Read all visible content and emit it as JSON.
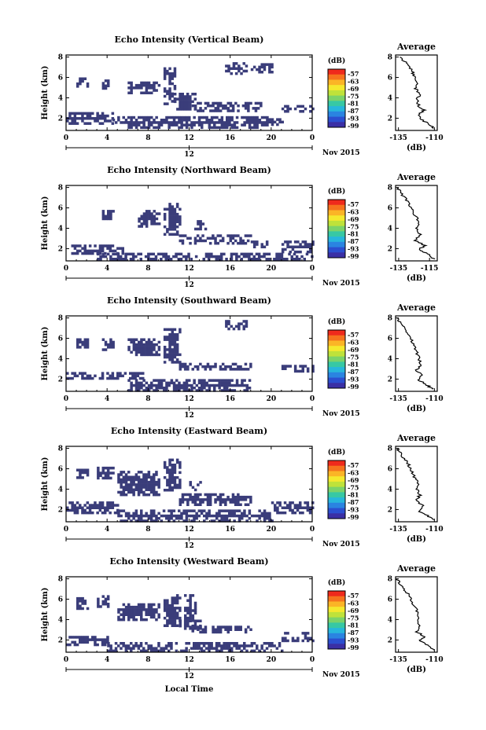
{
  "figure": {
    "xlabel": "Local Time",
    "date_label": "Nov 2015",
    "day_label": "12",
    "ylabel": "Height (km)",
    "colorbar_unit": "(dB)",
    "average_title": "Average",
    "average_xlabel": "(dB)"
  },
  "chart_data": [
    {
      "type": "heatmap",
      "title": "Echo Intensity (Vertical Beam)",
      "xticks": [
        "0",
        "4",
        "8",
        "12",
        "16",
        "20",
        "0"
      ],
      "yticks": [
        "2",
        "4",
        "6",
        "8"
      ],
      "xlim": [
        0,
        24
      ],
      "ylim": [
        0.8,
        8.2
      ],
      "colorbar_ticks": [
        "-57",
        "-63",
        "-69",
        "-75",
        "-81",
        "-87",
        "-93",
        "-99"
      ],
      "blobs": [
        {
          "t0": 0,
          "t1": 4.5,
          "h0": 1.4,
          "h1": 2.6
        },
        {
          "t0": 6,
          "t1": 19.5,
          "h0": 1.0,
          "h1": 2.2
        },
        {
          "t0": 19.5,
          "t1": 21,
          "h0": 1.5,
          "h1": 2.0
        },
        {
          "t0": 4.5,
          "t1": 6,
          "h0": 1.5,
          "h1": 2.2
        },
        {
          "t0": 9.5,
          "t1": 10.6,
          "h0": 3.5,
          "h1": 7.0
        },
        {
          "t0": 10.5,
          "t1": 12.5,
          "h0": 3.0,
          "h1": 4.5
        },
        {
          "t0": 12,
          "t1": 19,
          "h0": 2.8,
          "h1": 3.6
        },
        {
          "t0": 6,
          "t1": 9,
          "h0": 4.5,
          "h1": 5.6
        },
        {
          "t0": 3.5,
          "t1": 4,
          "h0": 5.0,
          "h1": 5.8
        },
        {
          "t0": 1,
          "t1": 2,
          "h0": 5.2,
          "h1": 6.0
        },
        {
          "t0": 15.5,
          "t1": 17.5,
          "h0": 6.5,
          "h1": 7.5
        },
        {
          "t0": 21,
          "t1": 24,
          "h0": 2.8,
          "h1": 3.3
        },
        {
          "t0": 18,
          "t1": 20,
          "h0": 6.5,
          "h1": 7.4
        }
      ],
      "avg": {
        "xticks": [
          "-135",
          "-110"
        ],
        "yticks": [
          "2",
          "4",
          "6",
          "8"
        ],
        "xlim": [
          -137,
          -108
        ],
        "ylim": [
          0.8,
          8.2
        ],
        "profile": [
          [
            -110,
            1.0
          ],
          [
            -114,
            1.4
          ],
          [
            -119,
            1.9
          ],
          [
            -121,
            2.4
          ],
          [
            -117,
            2.8
          ],
          [
            -121,
            3.2
          ],
          [
            -122,
            3.8
          ],
          [
            -120,
            4.4
          ],
          [
            -123,
            4.9
          ],
          [
            -122,
            5.5
          ],
          [
            -124,
            6.0
          ],
          [
            -125,
            6.5
          ],
          [
            -127,
            7.0
          ],
          [
            -130,
            7.5
          ],
          [
            -134,
            8.0
          ]
        ]
      }
    },
    {
      "type": "heatmap",
      "title": "Echo Intensity (Northward Beam)",
      "xticks": [
        "0",
        "4",
        "8",
        "12",
        "16",
        "20",
        "0"
      ],
      "yticks": [
        "2",
        "4",
        "6",
        "8"
      ],
      "xlim": [
        0,
        24
      ],
      "ylim": [
        0.8,
        8.2
      ],
      "colorbar_ticks": [
        "-57",
        "-63",
        "-69",
        "-75",
        "-81",
        "-87",
        "-93",
        "-99"
      ],
      "blobs": [
        {
          "t0": 0.5,
          "t1": 5.5,
          "h0": 1.5,
          "h1": 2.4
        },
        {
          "t0": 3,
          "t1": 24,
          "h0": 0.9,
          "h1": 1.6
        },
        {
          "t0": 9.5,
          "t1": 11,
          "h0": 3.5,
          "h1": 6.5
        },
        {
          "t0": 11,
          "t1": 18,
          "h0": 2.6,
          "h1": 3.4
        },
        {
          "t0": 7,
          "t1": 9,
          "h0": 4.2,
          "h1": 5.8
        },
        {
          "t0": 12.5,
          "t1": 13.5,
          "h0": 4.0,
          "h1": 4.8
        },
        {
          "t0": 3.5,
          "t1": 4.5,
          "h0": 5.0,
          "h1": 5.8
        },
        {
          "t0": 21,
          "t1": 24,
          "h0": 1.7,
          "h1": 2.8
        },
        {
          "t0": 18,
          "t1": 19.5,
          "h0": 2.2,
          "h1": 2.8
        }
      ],
      "avg": {
        "xticks": [
          "-135",
          "-115"
        ],
        "yticks": [
          "2",
          "4",
          "6",
          "8"
        ],
        "xlim": [
          -137,
          -110
        ],
        "ylim": [
          0.8,
          8.2
        ],
        "profile": [
          [
            -112,
            1.0
          ],
          [
            -116,
            1.5
          ],
          [
            -122,
            1.9
          ],
          [
            -118,
            2.3
          ],
          [
            -124,
            2.8
          ],
          [
            -121,
            3.4
          ],
          [
            -123,
            4.0
          ],
          [
            -122,
            4.6
          ],
          [
            -124,
            5.2
          ],
          [
            -126,
            5.8
          ],
          [
            -128,
            6.4
          ],
          [
            -131,
            7.0
          ],
          [
            -134,
            7.6
          ],
          [
            -136,
            8.0
          ]
        ]
      }
    },
    {
      "type": "heatmap",
      "title": "Echo Intensity (Southward Beam)",
      "xticks": [
        "0",
        "4",
        "8",
        "12",
        "16",
        "20",
        "0"
      ],
      "yticks": [
        "2",
        "4",
        "6",
        "8"
      ],
      "xlim": [
        0,
        24
      ],
      "ylim": [
        0.8,
        8.2
      ],
      "colorbar_ticks": [
        "-57",
        "-63",
        "-69",
        "-75",
        "-81",
        "-87",
        "-93",
        "-99"
      ],
      "blobs": [
        {
          "t0": 0,
          "t1": 7.5,
          "h0": 2.0,
          "h1": 2.7
        },
        {
          "t0": 6,
          "t1": 18,
          "h0": 0.9,
          "h1": 2.0
        },
        {
          "t0": 9.5,
          "t1": 11,
          "h0": 3.6,
          "h1": 7.0
        },
        {
          "t0": 11,
          "t1": 18,
          "h0": 3.0,
          "h1": 3.6
        },
        {
          "t0": 6,
          "t1": 9,
          "h0": 4.5,
          "h1": 6.0
        },
        {
          "t0": 15.5,
          "t1": 17.5,
          "h0": 7.0,
          "h1": 7.8
        },
        {
          "t0": 21,
          "t1": 24,
          "h0": 2.8,
          "h1": 3.4
        },
        {
          "t0": 1,
          "t1": 2,
          "h0": 5.2,
          "h1": 6.0
        },
        {
          "t0": 3.5,
          "t1": 4.5,
          "h0": 5.0,
          "h1": 6.0
        }
      ],
      "avg": {
        "xticks": [
          "-135",
          "-110"
        ],
        "yticks": [
          "2",
          "4",
          "6",
          "8"
        ],
        "xlim": [
          -137,
          -108
        ],
        "ylim": [
          0.8,
          8.2
        ],
        "profile": [
          [
            -111,
            1.0
          ],
          [
            -115,
            1.4
          ],
          [
            -121,
            1.9
          ],
          [
            -119,
            2.4
          ],
          [
            -123,
            2.9
          ],
          [
            -119,
            3.4
          ],
          [
            -121,
            4.0
          ],
          [
            -122,
            4.6
          ],
          [
            -124,
            5.2
          ],
          [
            -126,
            5.8
          ],
          [
            -128,
            6.4
          ],
          [
            -131,
            7.0
          ],
          [
            -134,
            7.6
          ],
          [
            -136,
            8.0
          ]
        ]
      }
    },
    {
      "type": "heatmap",
      "title": "Echo Intensity (Eastward Beam)",
      "xticks": [
        "0",
        "4",
        "8",
        "12",
        "16",
        "20",
        "0"
      ],
      "yticks": [
        "2",
        "4",
        "6",
        "8"
      ],
      "xlim": [
        0,
        24
      ],
      "ylim": [
        0.8,
        8.2
      ],
      "colorbar_ticks": [
        "-57",
        "-63",
        "-69",
        "-75",
        "-81",
        "-87",
        "-93",
        "-99"
      ],
      "blobs": [
        {
          "t0": 0,
          "t1": 5,
          "h0": 1.8,
          "h1": 2.8
        },
        {
          "t0": 5,
          "t1": 20,
          "h0": 0.9,
          "h1": 2.0
        },
        {
          "t0": 9.5,
          "t1": 11,
          "h0": 3.8,
          "h1": 7.0
        },
        {
          "t0": 11,
          "t1": 18,
          "h0": 2.6,
          "h1": 3.6
        },
        {
          "t0": 5,
          "t1": 9,
          "h0": 3.5,
          "h1": 5.8
        },
        {
          "t0": 12,
          "t1": 13,
          "h0": 4.0,
          "h1": 4.8
        },
        {
          "t0": 20,
          "t1": 24,
          "h0": 1.8,
          "h1": 2.8
        },
        {
          "t0": 1,
          "t1": 2,
          "h0": 5.2,
          "h1": 6.0
        },
        {
          "t0": 3,
          "t1": 4.5,
          "h0": 5.2,
          "h1": 6.2
        }
      ],
      "avg": {
        "xticks": [
          "-135",
          "-110"
        ],
        "yticks": [
          "2",
          "4",
          "6",
          "8"
        ],
        "xlim": [
          -137,
          -108
        ],
        "ylim": [
          0.8,
          8.2
        ],
        "profile": [
          [
            -111,
            1.0
          ],
          [
            -115,
            1.4
          ],
          [
            -121,
            1.9
          ],
          [
            -118,
            2.4
          ],
          [
            -123,
            2.9
          ],
          [
            -120,
            3.4
          ],
          [
            -122,
            4.0
          ],
          [
            -121,
            4.6
          ],
          [
            -124,
            5.2
          ],
          [
            -126,
            5.8
          ],
          [
            -128,
            6.4
          ],
          [
            -131,
            7.0
          ],
          [
            -134,
            7.6
          ],
          [
            -136,
            8.0
          ]
        ]
      }
    },
    {
      "type": "heatmap",
      "title": "Echo Intensity (Westward Beam)",
      "xticks": [
        "0",
        "4",
        "8",
        "12",
        "16",
        "20",
        "0"
      ],
      "yticks": [
        "2",
        "4",
        "6",
        "8"
      ],
      "xlim": [
        0,
        24
      ],
      "ylim": [
        0.8,
        8.2
      ],
      "colorbar_ticks": [
        "-57",
        "-63",
        "-69",
        "-75",
        "-81",
        "-87",
        "-93",
        "-99"
      ],
      "blobs": [
        {
          "t0": 0,
          "t1": 4,
          "h0": 1.6,
          "h1": 2.4
        },
        {
          "t0": 4,
          "t1": 21,
          "h0": 0.9,
          "h1": 1.8
        },
        {
          "t0": 9.5,
          "t1": 11,
          "h0": 3.5,
          "h1": 6.5
        },
        {
          "t0": 11,
          "t1": 13,
          "h0": 3.0,
          "h1": 4.0
        },
        {
          "t0": 5,
          "t1": 9,
          "h0": 4.0,
          "h1": 5.6
        },
        {
          "t0": 12,
          "t1": 18,
          "h0": 2.8,
          "h1": 3.4
        },
        {
          "t0": 3,
          "t1": 4,
          "h0": 5.4,
          "h1": 6.4
        },
        {
          "t0": 1,
          "t1": 2,
          "h0": 5.2,
          "h1": 6.2
        },
        {
          "t0": 21,
          "t1": 24,
          "h0": 2.0,
          "h1": 2.8
        },
        {
          "t0": 11.5,
          "t1": 12.5,
          "h0": 4.0,
          "h1": 6.5
        }
      ],
      "avg": {
        "xticks": [
          "-135",
          "-110"
        ],
        "yticks": [
          "2",
          "4",
          "6",
          "8"
        ],
        "xlim": [
          -137,
          -108
        ],
        "ylim": [
          0.8,
          8.2
        ],
        "profile": [
          [
            -110,
            1.0
          ],
          [
            -115,
            1.5
          ],
          [
            -120,
            1.9
          ],
          [
            -117,
            2.3
          ],
          [
            -122,
            2.8
          ],
          [
            -120,
            3.4
          ],
          [
            -122,
            4.0
          ],
          [
            -121,
            4.6
          ],
          [
            -123,
            5.2
          ],
          [
            -126,
            5.8
          ],
          [
            -128,
            6.4
          ],
          [
            -131,
            7.0
          ],
          [
            -134,
            7.6
          ],
          [
            -136,
            8.0
          ]
        ]
      }
    }
  ],
  "colors": {
    "echo": "#3a3d7a",
    "colorbar": [
      "#ef2a1c",
      "#f6731e",
      "#fbb526",
      "#f5e92e",
      "#bfe23a",
      "#7bd36a",
      "#37c8a4",
      "#27b6dc",
      "#2a84e1",
      "#2b4fd0",
      "#3a2fa5"
    ]
  }
}
